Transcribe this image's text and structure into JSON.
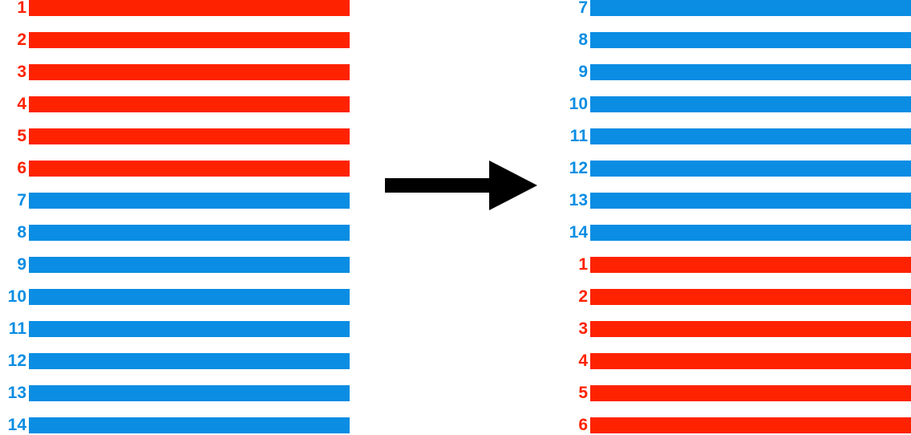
{
  "colors": {
    "red": "#ff2200",
    "blue": "#0a8de3",
    "arrow": "#000000"
  },
  "before": {
    "rows": [
      {
        "label": "1",
        "color": "red"
      },
      {
        "label": "2",
        "color": "red"
      },
      {
        "label": "3",
        "color": "red"
      },
      {
        "label": "4",
        "color": "red"
      },
      {
        "label": "5",
        "color": "red"
      },
      {
        "label": "6",
        "color": "red"
      },
      {
        "label": "7",
        "color": "blue"
      },
      {
        "label": "8",
        "color": "blue"
      },
      {
        "label": "9",
        "color": "blue"
      },
      {
        "label": "10",
        "color": "blue"
      },
      {
        "label": "11",
        "color": "blue"
      },
      {
        "label": "12",
        "color": "blue"
      },
      {
        "label": "13",
        "color": "blue"
      },
      {
        "label": "14",
        "color": "blue"
      }
    ]
  },
  "after": {
    "rows": [
      {
        "label": "7",
        "color": "blue"
      },
      {
        "label": "8",
        "color": "blue"
      },
      {
        "label": "9",
        "color": "blue"
      },
      {
        "label": "10",
        "color": "blue"
      },
      {
        "label": "11",
        "color": "blue"
      },
      {
        "label": "12",
        "color": "blue"
      },
      {
        "label": "13",
        "color": "blue"
      },
      {
        "label": "14",
        "color": "blue"
      },
      {
        "label": "1",
        "color": "red"
      },
      {
        "label": "2",
        "color": "red"
      },
      {
        "label": "3",
        "color": "red"
      },
      {
        "label": "4",
        "color": "red"
      },
      {
        "label": "5",
        "color": "red"
      },
      {
        "label": "6",
        "color": "red"
      }
    ]
  },
  "arrow_icon": "right-arrow-icon"
}
